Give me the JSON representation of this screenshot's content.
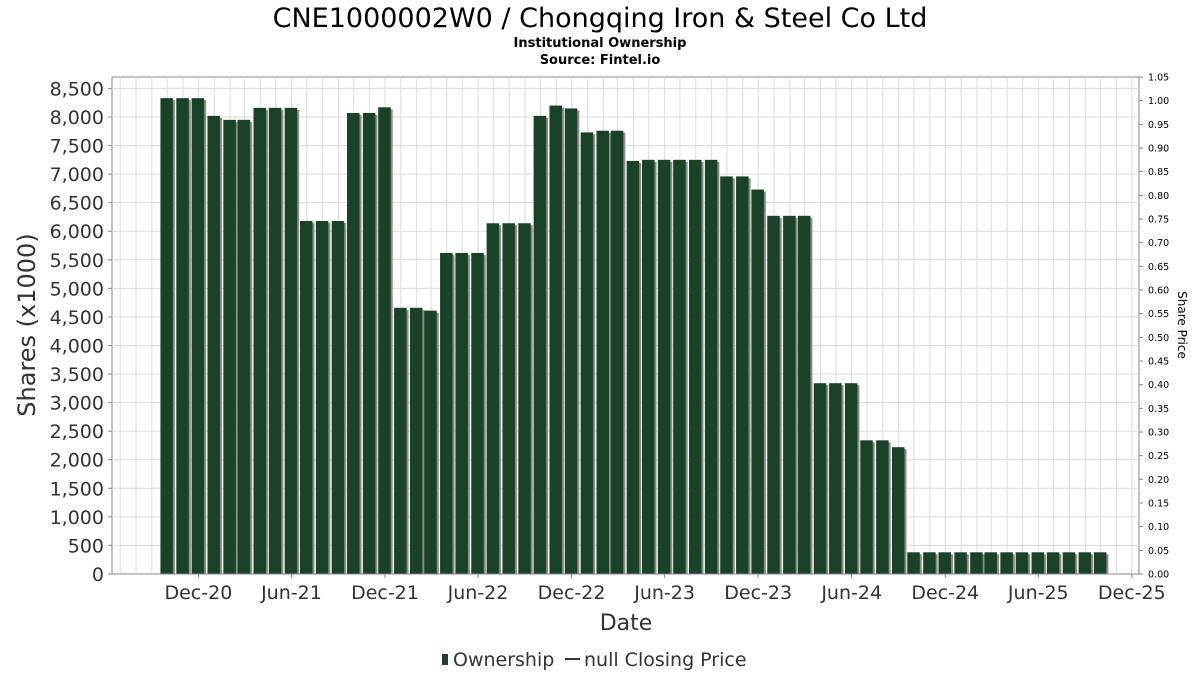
{
  "chart_data": {
    "type": "bar",
    "title": "CNE1000002W0 / Chongqing Iron & Steel Co Ltd",
    "subtitle": "Institutional Ownership",
    "source": "Source: Fintel.io",
    "xlabel": "Date",
    "ylabel": "Shares (x1000)",
    "y2label": "Share Price",
    "ylim": [
      0,
      8700
    ],
    "y_ticks": [
      0,
      500,
      1000,
      1500,
      2000,
      2500,
      3000,
      3500,
      4000,
      4500,
      5000,
      5500,
      6000,
      6500,
      7000,
      7500,
      8000,
      8500
    ],
    "y_tick_labels": [
      "0",
      "500",
      "1,000",
      "1,500",
      "2,000",
      "2,500",
      "3,000",
      "3,500",
      "4,000",
      "4,500",
      "5,000",
      "5,500",
      "6,000",
      "6,500",
      "7,000",
      "7,500",
      "8,000",
      "8,500"
    ],
    "y2lim": [
      0,
      1.05
    ],
    "y2_ticks": [
      0.0,
      0.05,
      0.1,
      0.15,
      0.2,
      0.25,
      0.3,
      0.35,
      0.4,
      0.45,
      0.5,
      0.55,
      0.6,
      0.65,
      0.7,
      0.75,
      0.8,
      0.85,
      0.9,
      0.95,
      1.0,
      1.05
    ],
    "y2_tick_labels": [
      "0.00",
      "0.05",
      "0.10",
      "0.15",
      "0.20",
      "0.25",
      "0.30",
      "0.35",
      "0.40",
      "0.45",
      "0.50",
      "0.55",
      "0.60",
      "0.65",
      "0.70",
      "0.75",
      "0.80",
      "0.85",
      "0.90",
      "0.95",
      "1.00",
      "1.05"
    ],
    "xlim": [
      "2020-06-15",
      "2025-12-15"
    ],
    "x_ticks": [
      {
        "date": "2020-12-01",
        "label": "Dec-20"
      },
      {
        "date": "2021-06-01",
        "label": "Jun-21"
      },
      {
        "date": "2021-12-01",
        "label": "Dec-21"
      },
      {
        "date": "2022-06-01",
        "label": "Jun-22"
      },
      {
        "date": "2022-12-01",
        "label": "Dec-22"
      },
      {
        "date": "2023-06-01",
        "label": "Jun-23"
      },
      {
        "date": "2023-12-01",
        "label": "Dec-23"
      },
      {
        "date": "2024-06-01",
        "label": "Jun-24"
      },
      {
        "date": "2024-12-01",
        "label": "Dec-24"
      },
      {
        "date": "2025-06-01",
        "label": "Jun-25"
      },
      {
        "date": "2025-12-01",
        "label": "Dec-25"
      }
    ],
    "series": [
      {
        "name": "Ownership",
        "color": "#1a4226",
        "shadow_color": "#8c8c8c",
        "dates": [
          "2020-09-30",
          "2020-10-31",
          "2020-11-30",
          "2020-12-31",
          "2021-01-31",
          "2021-02-28",
          "2021-03-31",
          "2021-04-30",
          "2021-05-31",
          "2021-06-30",
          "2021-07-31",
          "2021-08-31",
          "2021-09-30",
          "2021-10-31",
          "2021-11-30",
          "2021-12-31",
          "2022-01-31",
          "2022-02-28",
          "2022-03-31",
          "2022-04-30",
          "2022-05-31",
          "2022-06-30",
          "2022-07-31",
          "2022-08-31",
          "2022-09-30",
          "2022-10-31",
          "2022-11-30",
          "2022-12-31",
          "2023-01-31",
          "2023-02-28",
          "2023-03-31",
          "2023-04-30",
          "2023-05-31",
          "2023-06-30",
          "2023-07-31",
          "2023-08-31",
          "2023-09-30",
          "2023-10-31",
          "2023-11-30",
          "2023-12-31",
          "2024-01-31",
          "2024-02-29",
          "2024-03-31",
          "2024-04-30",
          "2024-05-31",
          "2024-06-30",
          "2024-07-31",
          "2024-08-31",
          "2024-09-30",
          "2024-10-31",
          "2024-11-30",
          "2024-12-31",
          "2025-01-31",
          "2025-02-28",
          "2025-03-31",
          "2025-04-30",
          "2025-05-31",
          "2025-06-30",
          "2025-07-31",
          "2025-08-31",
          "2025-09-30"
        ],
        "values": [
          8330,
          8330,
          8330,
          8020,
          7950,
          7950,
          8160,
          8160,
          8160,
          6180,
          6180,
          6180,
          8070,
          8070,
          8170,
          4660,
          4660,
          4610,
          5620,
          5620,
          5620,
          6140,
          6140,
          6140,
          8020,
          8200,
          8150,
          7730,
          7760,
          7760,
          7230,
          7250,
          7250,
          7250,
          7250,
          7250,
          6960,
          6960,
          6730,
          6270,
          6270,
          6270,
          3340,
          3340,
          3340,
          2340,
          2340,
          2220,
          380,
          380,
          380,
          380,
          380,
          380,
          380,
          380,
          380,
          380,
          380,
          380,
          380
        ]
      },
      {
        "name": "null Closing Price",
        "color": "#333333",
        "values": []
      }
    ],
    "legend": "bottom-center",
    "grid": true,
    "colors": {
      "bar": "#1a4226",
      "bar_shadow": "#8c8c8c",
      "grid": "#dcdcdc",
      "frame": "#888888",
      "text": "#333333"
    }
  }
}
